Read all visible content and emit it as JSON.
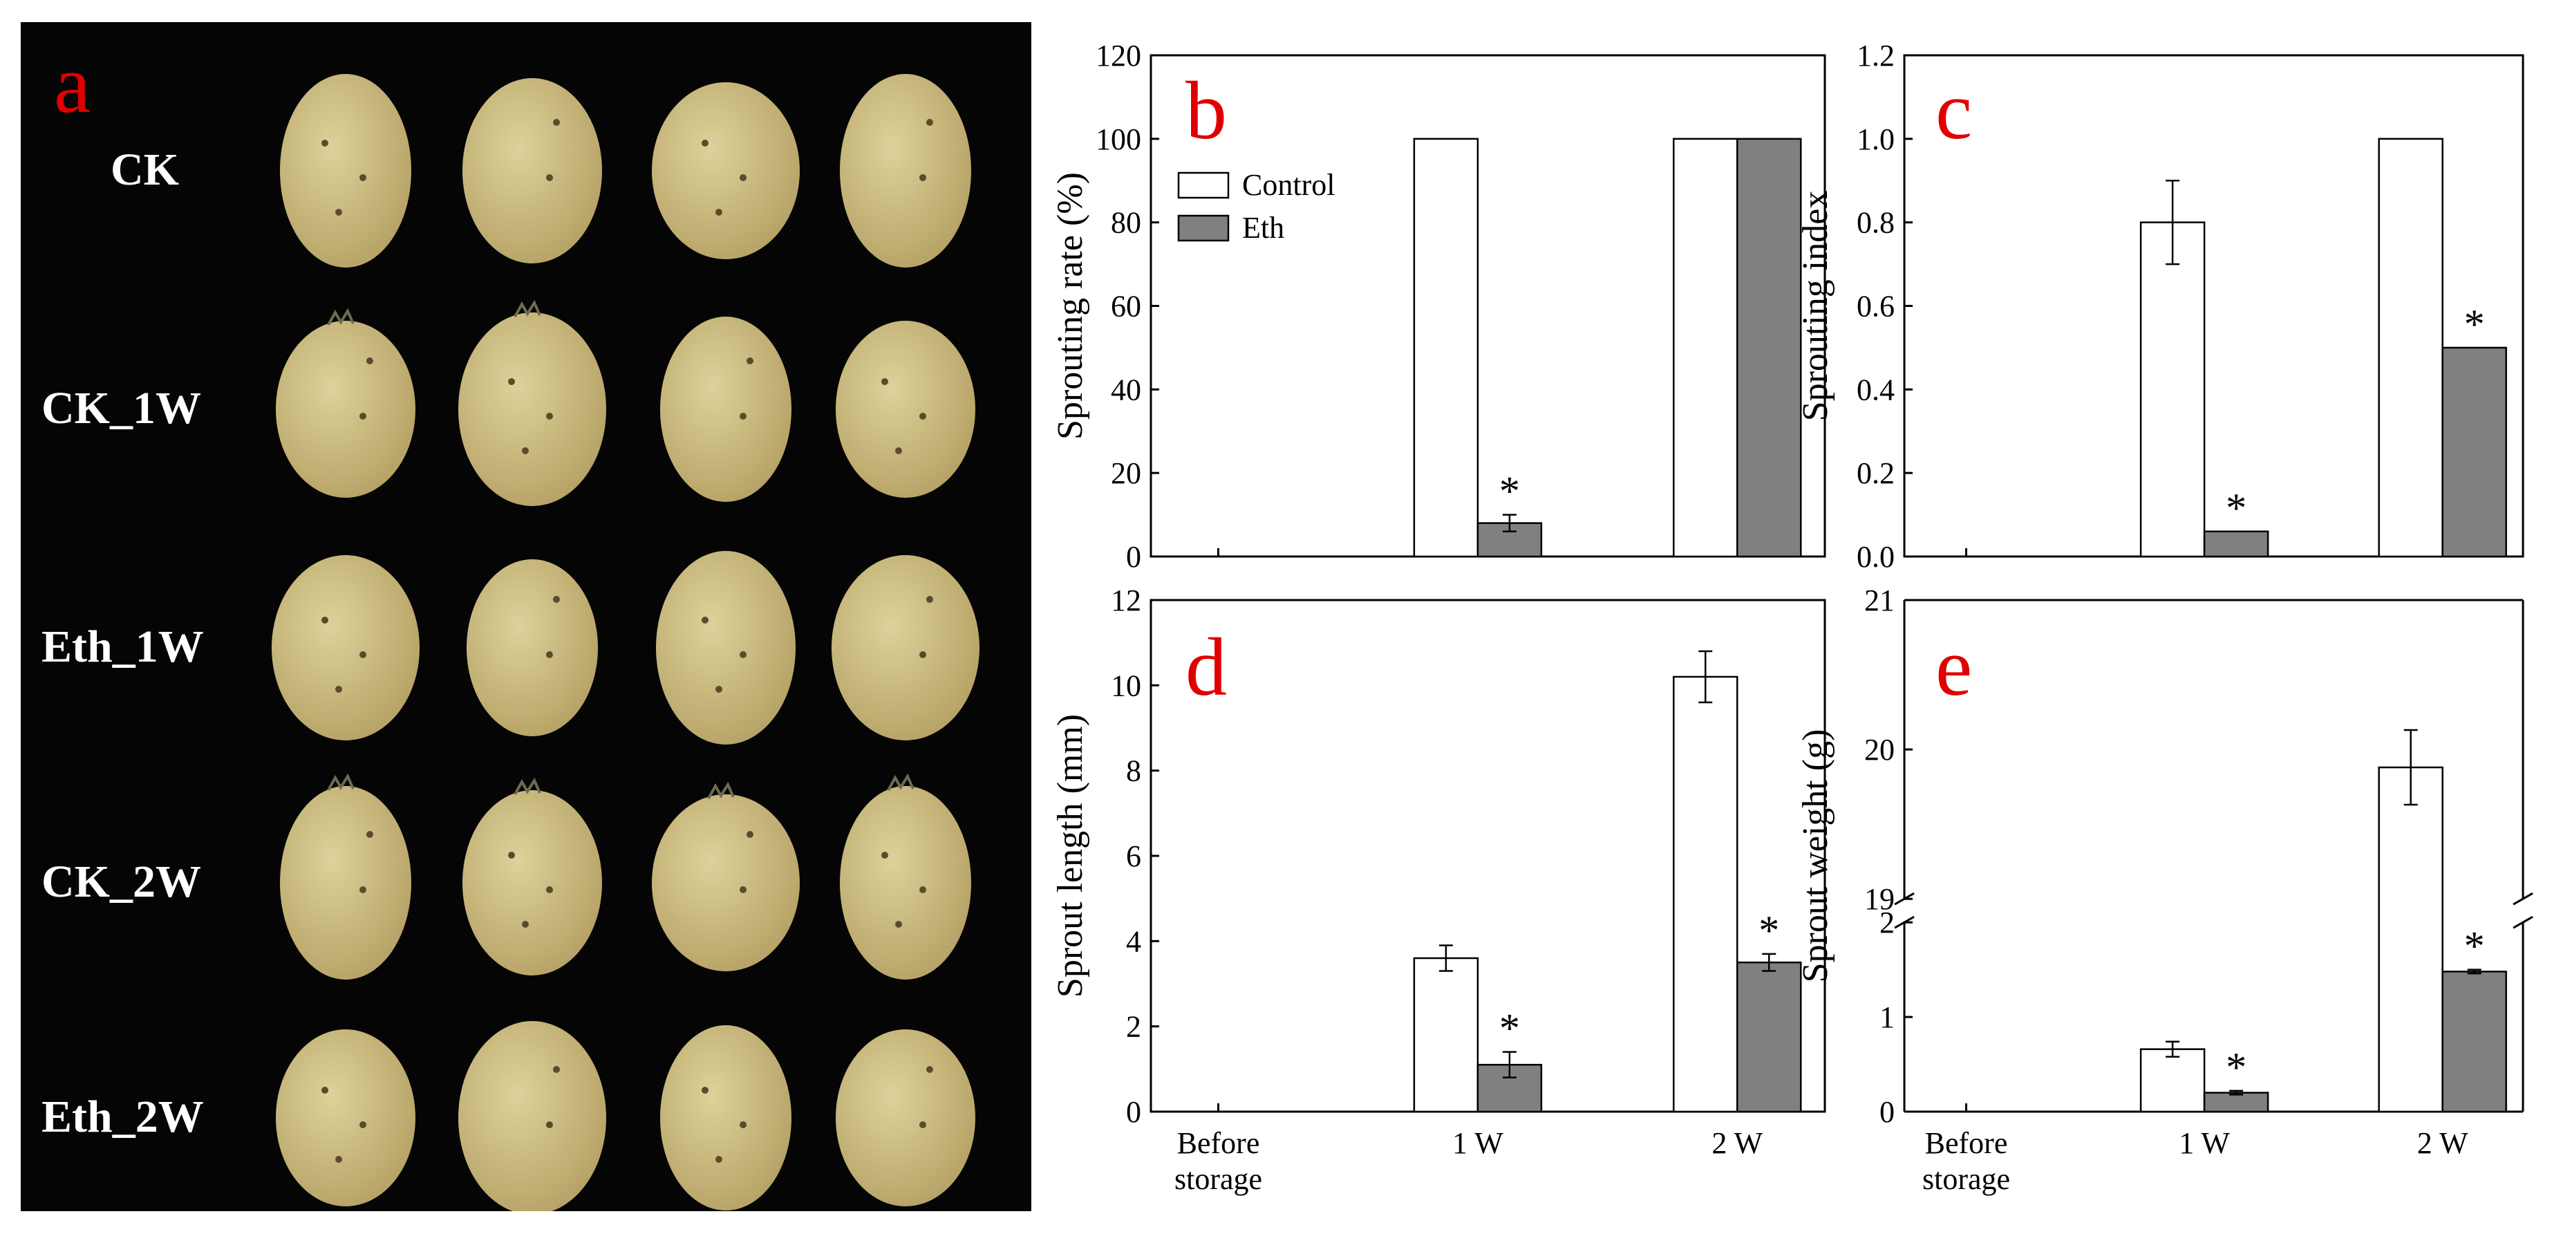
{
  "panel_a": {
    "letter": "a",
    "rows": [
      "CK",
      "CK_1W",
      "Eth_1W",
      "CK_2W",
      "Eth_2W"
    ],
    "potatoes_per_row": 4
  },
  "colors": {
    "panel_letter": "#e00000",
    "control_fill": "#ffffff",
    "eth_fill": "#808080",
    "axis": "#000000",
    "photo_background": "#050505",
    "potato_light": "#ddd29a",
    "potato_dark": "#b7a367"
  },
  "chart_data": [
    {
      "panel": "b",
      "type": "bar",
      "categories": [
        "Before\nstorage",
        "1 W",
        "2 W"
      ],
      "ylabel": "Sprouting rate (%)",
      "xlabel": "",
      "ylim": [
        0,
        120
      ],
      "yticks": [
        "0",
        "20",
        "40",
        "60",
        "80",
        "100",
        "120"
      ],
      "legend": {
        "placement": "top-left",
        "entries": [
          "Control",
          "Eth"
        ]
      },
      "series": [
        {
          "name": "Control",
          "values": [
            null,
            100,
            100
          ],
          "errors": [
            null,
            0,
            0
          ]
        },
        {
          "name": "Eth",
          "values": [
            null,
            8,
            100
          ],
          "errors": [
            null,
            2,
            0
          ]
        }
      ],
      "annotations": [
        {
          "series": "Eth",
          "category": "1 W",
          "text": "*"
        }
      ],
      "show_x_labels": false
    },
    {
      "panel": "c",
      "type": "bar",
      "categories": [
        "Before\nstorage",
        "1 W",
        "2 W"
      ],
      "ylabel": "Sprouting index",
      "xlabel": "",
      "ylim": [
        0,
        1.2
      ],
      "yticks": [
        "0.0",
        "0.2",
        "0.4",
        "0.6",
        "0.8",
        "1.0",
        "1.2"
      ],
      "series": [
        {
          "name": "Control",
          "values": [
            null,
            0.8,
            1.0
          ],
          "errors": [
            null,
            0.1,
            0
          ]
        },
        {
          "name": "Eth",
          "values": [
            null,
            0.06,
            0.5
          ],
          "errors": [
            null,
            0,
            0
          ]
        }
      ],
      "annotations": [
        {
          "series": "Eth",
          "category": "1 W",
          "text": "*"
        },
        {
          "series": "Eth",
          "category": "2 W",
          "text": "*"
        }
      ],
      "show_x_labels": false
    },
    {
      "panel": "d",
      "type": "bar",
      "categories": [
        "Before\nstorage",
        "1 W",
        "2 W"
      ],
      "ylabel": "Sprout length (mm)",
      "xlabel": "",
      "ylim": [
        0,
        12
      ],
      "yticks": [
        "0",
        "2",
        "4",
        "6",
        "8",
        "10",
        "12"
      ],
      "series": [
        {
          "name": "Control",
          "values": [
            null,
            3.6,
            10.2
          ],
          "errors": [
            null,
            0.3,
            0.6
          ]
        },
        {
          "name": "Eth",
          "values": [
            null,
            1.1,
            3.5
          ],
          "errors": [
            null,
            0.3,
            0.2
          ]
        }
      ],
      "annotations": [
        {
          "series": "Eth",
          "category": "1 W",
          "text": "*"
        },
        {
          "series": "Eth",
          "category": "2 W",
          "text": "*"
        }
      ],
      "show_x_labels": true
    },
    {
      "panel": "e",
      "type": "bar",
      "categories": [
        "Before\nstorage",
        "1 W",
        "2 W"
      ],
      "ylabel": "Sprout weight (g)",
      "xlabel": "",
      "broken_axis": {
        "lower": [
          0,
          2
        ],
        "upper": [
          19,
          21
        ]
      },
      "yticks_lower": [
        "0",
        "1",
        "2"
      ],
      "yticks_upper": [
        "19",
        "20",
        "21"
      ],
      "series": [
        {
          "name": "Control",
          "values": [
            null,
            0.66,
            19.88
          ],
          "errors": [
            null,
            0.08,
            0.25
          ]
        },
        {
          "name": "Eth",
          "values": [
            null,
            0.2,
            1.48
          ],
          "errors": [
            null,
            0.02,
            0.02
          ]
        }
      ],
      "annotations": [
        {
          "series": "Eth",
          "category": "1 W",
          "text": "*"
        },
        {
          "series": "Eth",
          "category": "2 W",
          "text": "*"
        }
      ],
      "show_x_labels": true
    }
  ]
}
